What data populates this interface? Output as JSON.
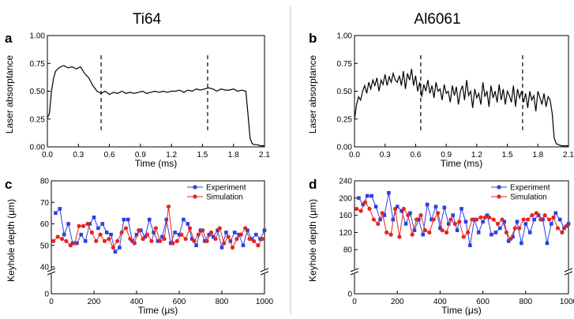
{
  "panel_titles": [
    "Ti64",
    "Al6061"
  ],
  "colors": {
    "experiment": "#2d3fe0",
    "simulation": "#e8231e",
    "trace": "#000000",
    "divider": "#c8c8c8"
  },
  "chart_data": [
    {
      "letter": "a",
      "type": "line",
      "xlabel": "Time (ms)",
      "ylabel": "Laser absorptance",
      "xlim": [
        0,
        2.1
      ],
      "ylim": [
        0,
        1.0
      ],
      "xticks": [
        "0.0",
        "0.3",
        "0.6",
        "0.9",
        "1.2",
        "1.5",
        "1.8",
        "2.1"
      ],
      "yticks": [
        "0.00",
        "0.25",
        "0.50",
        "0.75",
        "1.00"
      ],
      "dashed_x": [
        0.52,
        1.55
      ],
      "x": [
        0,
        0.02,
        0.04,
        0.06,
        0.08,
        0.1,
        0.13,
        0.16,
        0.2,
        0.24,
        0.28,
        0.32,
        0.36,
        0.4,
        0.44,
        0.48,
        0.52,
        0.56,
        0.6,
        0.64,
        0.68,
        0.72,
        0.76,
        0.8,
        0.84,
        0.88,
        0.92,
        0.96,
        1.0,
        1.04,
        1.08,
        1.12,
        1.16,
        1.2,
        1.24,
        1.28,
        1.32,
        1.36,
        1.4,
        1.44,
        1.48,
        1.52,
        1.56,
        1.6,
        1.64,
        1.68,
        1.72,
        1.76,
        1.8,
        1.84,
        1.88,
        1.92,
        1.94,
        1.96,
        1.98,
        2.0,
        2.03,
        2.06,
        2.1
      ],
      "y": [
        0.26,
        0.3,
        0.5,
        0.62,
        0.68,
        0.7,
        0.72,
        0.73,
        0.71,
        0.72,
        0.7,
        0.72,
        0.66,
        0.62,
        0.55,
        0.5,
        0.48,
        0.5,
        0.47,
        0.49,
        0.48,
        0.5,
        0.48,
        0.49,
        0.48,
        0.49,
        0.5,
        0.48,
        0.49,
        0.5,
        0.49,
        0.5,
        0.49,
        0.5,
        0.5,
        0.51,
        0.49,
        0.51,
        0.5,
        0.52,
        0.51,
        0.52,
        0.53,
        0.52,
        0.5,
        0.52,
        0.51,
        0.51,
        0.52,
        0.5,
        0.51,
        0.5,
        0.3,
        0.08,
        0.03,
        0.02,
        0.02,
        0.01,
        0.01
      ]
    },
    {
      "letter": "b",
      "type": "line",
      "xlabel": "Time (ms)",
      "ylabel": "Laser absorptance",
      "xlim": [
        0,
        2.1
      ],
      "ylim": [
        0,
        1.0
      ],
      "xticks": [
        "0.0",
        "0.3",
        "0.6",
        "0.9",
        "1.2",
        "1.5",
        "1.8",
        "2.1"
      ],
      "yticks": [
        "0.00",
        "0.25",
        "0.50",
        "0.75",
        "1.00"
      ],
      "dashed_x": [
        0.65,
        1.65
      ],
      "x": [
        0,
        0.02,
        0.04,
        0.06,
        0.08,
        0.1,
        0.12,
        0.14,
        0.16,
        0.18,
        0.2,
        0.22,
        0.24,
        0.26,
        0.28,
        0.3,
        0.32,
        0.34,
        0.36,
        0.38,
        0.4,
        0.42,
        0.44,
        0.46,
        0.48,
        0.5,
        0.52,
        0.54,
        0.56,
        0.58,
        0.6,
        0.62,
        0.64,
        0.66,
        0.68,
        0.7,
        0.72,
        0.74,
        0.76,
        0.78,
        0.8,
        0.82,
        0.84,
        0.86,
        0.88,
        0.9,
        0.92,
        0.94,
        0.96,
        0.98,
        1.0,
        1.02,
        1.04,
        1.06,
        1.08,
        1.1,
        1.12,
        1.14,
        1.16,
        1.18,
        1.2,
        1.22,
        1.24,
        1.26,
        1.28,
        1.3,
        1.32,
        1.34,
        1.36,
        1.38,
        1.4,
        1.42,
        1.44,
        1.46,
        1.48,
        1.5,
        1.52,
        1.54,
        1.56,
        1.58,
        1.6,
        1.62,
        1.64,
        1.66,
        1.68,
        1.7,
        1.72,
        1.74,
        1.76,
        1.78,
        1.8,
        1.82,
        1.84,
        1.86,
        1.88,
        1.9,
        1.92,
        1.94,
        1.96,
        1.98,
        2.0,
        2.03,
        2.06,
        2.1
      ],
      "y": [
        0.25,
        0.38,
        0.45,
        0.42,
        0.5,
        0.55,
        0.48,
        0.58,
        0.52,
        0.6,
        0.55,
        0.62,
        0.5,
        0.6,
        0.56,
        0.65,
        0.55,
        0.63,
        0.58,
        0.66,
        0.6,
        0.58,
        0.64,
        0.55,
        0.68,
        0.52,
        0.66,
        0.6,
        0.7,
        0.55,
        0.64,
        0.5,
        0.58,
        0.45,
        0.56,
        0.5,
        0.6,
        0.48,
        0.55,
        0.44,
        0.58,
        0.5,
        0.52,
        0.42,
        0.56,
        0.48,
        0.5,
        0.4,
        0.55,
        0.46,
        0.54,
        0.38,
        0.5,
        0.55,
        0.42,
        0.6,
        0.46,
        0.5,
        0.35,
        0.52,
        0.44,
        0.48,
        0.38,
        0.58,
        0.45,
        0.5,
        0.36,
        0.55,
        0.44,
        0.5,
        0.4,
        0.56,
        0.42,
        0.52,
        0.38,
        0.5,
        0.46,
        0.4,
        0.55,
        0.36,
        0.52,
        0.44,
        0.5,
        0.4,
        0.48,
        0.35,
        0.5,
        0.42,
        0.46,
        0.32,
        0.5,
        0.44,
        0.38,
        0.48,
        0.36,
        0.45,
        0.42,
        0.3,
        0.08,
        0.03,
        0.02,
        0.01,
        0.01,
        0.01
      ]
    },
    {
      "letter": "c",
      "type": "line",
      "xlabel": "Time (μs)",
      "ylabel": "Keyhole depth (μm)",
      "xlim": [
        0,
        1000
      ],
      "ylim": [
        40,
        80
      ],
      "xticks": [
        "0",
        "200",
        "400",
        "600",
        "800",
        "1000"
      ],
      "yticks": [
        "40",
        "50",
        "60",
        "70",
        "80"
      ],
      "yticks_values": [
        40,
        50,
        60,
        70,
        80
      ],
      "axis_break": true,
      "y_bottom_tick": "0",
      "legend": {
        "position": "top-right",
        "entries": [
          "Experiment",
          "Simulation"
        ]
      },
      "series": [
        {
          "name": "Experiment",
          "marker": "square",
          "x": [
            20,
            40,
            60,
            80,
            100,
            120,
            140,
            160,
            180,
            200,
            220,
            240,
            260,
            280,
            300,
            320,
            340,
            360,
            380,
            400,
            420,
            440,
            460,
            480,
            500,
            520,
            540,
            560,
            580,
            600,
            620,
            640,
            660,
            680,
            700,
            720,
            740,
            760,
            780,
            800,
            820,
            840,
            860,
            880,
            900,
            920,
            940,
            960,
            980,
            1000
          ],
          "values": [
            65,
            67,
            55,
            60,
            51,
            51,
            55,
            52,
            60,
            63,
            58,
            60,
            56,
            55,
            47,
            49,
            62,
            62,
            52,
            55,
            57,
            54,
            62,
            56,
            52,
            54,
            62,
            51,
            56,
            55,
            62,
            60,
            53,
            50,
            57,
            52,
            55,
            54,
            57,
            49,
            56,
            52,
            56,
            55,
            50,
            57,
            53,
            55,
            53,
            57
          ]
        },
        {
          "name": "Simulation",
          "marker": "circle",
          "x": [
            10,
            30,
            50,
            70,
            90,
            110,
            130,
            150,
            170,
            190,
            210,
            230,
            250,
            270,
            290,
            310,
            330,
            350,
            370,
            390,
            410,
            430,
            450,
            470,
            490,
            510,
            530,
            550,
            570,
            590,
            610,
            630,
            650,
            670,
            690,
            710,
            730,
            750,
            770,
            790,
            810,
            830,
            850,
            870,
            890,
            910,
            930,
            950,
            970,
            990
          ],
          "values": [
            52,
            54,
            53,
            52,
            50,
            51,
            59,
            59,
            60,
            56,
            52,
            55,
            52,
            53,
            49,
            52,
            56,
            58,
            53,
            51,
            57,
            53,
            55,
            52,
            58,
            52,
            53,
            68,
            51,
            52,
            55,
            53,
            58,
            52,
            55,
            57,
            52,
            56,
            53,
            58,
            51,
            54,
            49,
            53,
            55,
            58,
            53,
            52,
            50,
            53
          ]
        }
      ]
    },
    {
      "letter": "d",
      "type": "line",
      "xlabel": "Time (μs)",
      "ylabel": "Keyhole depth (μm)",
      "xlim": [
        0,
        1000
      ],
      "ylim": [
        40,
        240
      ],
      "xticks": [
        "0",
        "200",
        "400",
        "600",
        "800",
        "1000"
      ],
      "yticks": [
        "80",
        "120",
        "160",
        "200",
        "240"
      ],
      "yticks_values": [
        80,
        120,
        160,
        200,
        240
      ],
      "axis_break": true,
      "y_bottom_tick": "0",
      "legend": {
        "position": "top-right",
        "entries": [
          "Experiment",
          "Simulation"
        ]
      },
      "series": [
        {
          "name": "Experiment",
          "marker": "square",
          "x": [
            20,
            40,
            60,
            80,
            100,
            120,
            140,
            160,
            180,
            200,
            220,
            240,
            260,
            280,
            300,
            320,
            340,
            360,
            380,
            400,
            420,
            440,
            460,
            480,
            500,
            520,
            540,
            560,
            580,
            600,
            620,
            640,
            660,
            680,
            700,
            720,
            740,
            760,
            780,
            800,
            820,
            840,
            860,
            880,
            900,
            920,
            940,
            960,
            980,
            1000
          ],
          "values": [
            200,
            185,
            205,
            205,
            180,
            150,
            160,
            212,
            150,
            180,
            170,
            140,
            165,
            125,
            150,
            115,
            185,
            150,
            180,
            130,
            178,
            140,
            160,
            125,
            175,
            145,
            90,
            150,
            120,
            145,
            160,
            115,
            120,
            130,
            145,
            100,
            110,
            145,
            95,
            140,
            120,
            150,
            160,
            150,
            95,
            140,
            165,
            150,
            130,
            140
          ]
        },
        {
          "name": "Simulation",
          "marker": "circle",
          "x": [
            10,
            30,
            50,
            70,
            90,
            110,
            130,
            150,
            170,
            190,
            210,
            230,
            250,
            270,
            290,
            310,
            330,
            350,
            370,
            390,
            410,
            430,
            450,
            470,
            490,
            510,
            530,
            550,
            570,
            590,
            610,
            630,
            650,
            670,
            690,
            710,
            730,
            750,
            770,
            790,
            810,
            830,
            850,
            870,
            890,
            910,
            930,
            950,
            970,
            990
          ],
          "values": [
            175,
            170,
            190,
            175,
            150,
            140,
            165,
            120,
            115,
            175,
            110,
            175,
            160,
            115,
            150,
            160,
            125,
            120,
            150,
            165,
            125,
            120,
            150,
            140,
            145,
            110,
            120,
            150,
            150,
            155,
            155,
            155,
            150,
            140,
            150,
            120,
            105,
            130,
            130,
            150,
            150,
            160,
            165,
            150,
            160,
            150,
            155,
            130,
            120,
            135
          ]
        }
      ]
    }
  ]
}
